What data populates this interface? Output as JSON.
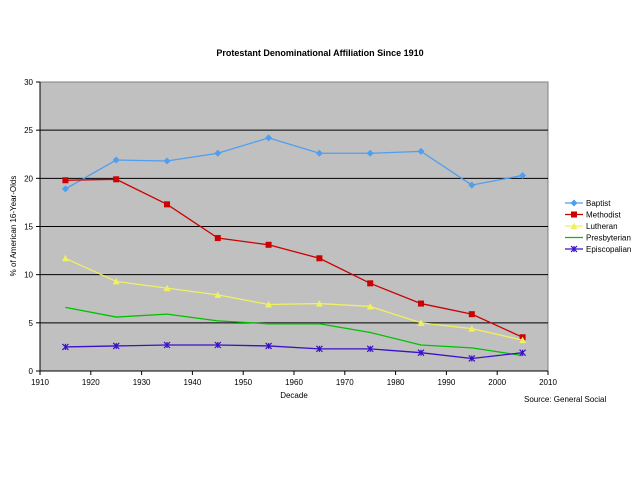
{
  "chart_data": {
    "type": "line",
    "title": "Protestant Denominational Affiliation Since 1910",
    "xlabel": "Decade",
    "ylabel": "% of American 16-Year-Olds",
    "xlim": [
      1910,
      2010
    ],
    "ylim": [
      0,
      30
    ],
    "x_ticks": [
      1910,
      1920,
      1930,
      1940,
      1950,
      1960,
      1970,
      1980,
      1990,
      2000,
      2010
    ],
    "y_ticks": [
      0,
      5,
      10,
      15,
      20,
      25,
      30
    ],
    "grid": "horizontal",
    "plot_background": "#c0c0c0",
    "legend_position": "right",
    "source_note": "Source: General Social",
    "x": [
      1915,
      1925,
      1935,
      1945,
      1955,
      1965,
      1975,
      1985,
      1995,
      2005
    ],
    "series": [
      {
        "name": "Baptist",
        "color": "#4f9ef0",
        "marker": "diamond",
        "values": [
          18.9,
          21.9,
          21.8,
          22.6,
          24.2,
          22.6,
          22.6,
          22.8,
          19.3,
          20.3
        ]
      },
      {
        "name": "Methodist",
        "color": "#cc0000",
        "marker": "square",
        "values": [
          19.8,
          19.9,
          17.3,
          13.8,
          13.1,
          11.7,
          9.1,
          7.0,
          5.9,
          3.5
        ]
      },
      {
        "name": "Lutheran",
        "color": "#f0f060",
        "marker": "triangle",
        "values": [
          11.7,
          9.3,
          8.6,
          7.9,
          6.9,
          7.0,
          6.7,
          5.0,
          4.4,
          3.2
        ]
      },
      {
        "name": "Presbyterian",
        "color": "#00c000",
        "marker": "none",
        "values": [
          6.6,
          5.6,
          5.9,
          5.2,
          4.9,
          4.9,
          4.0,
          2.7,
          2.4,
          1.6
        ]
      },
      {
        "name": "Episcopalian",
        "color": "#3a10c8",
        "marker": "star",
        "values": [
          2.5,
          2.6,
          2.7,
          2.7,
          2.6,
          2.3,
          2.3,
          1.9,
          1.3,
          1.9
        ]
      }
    ]
  }
}
